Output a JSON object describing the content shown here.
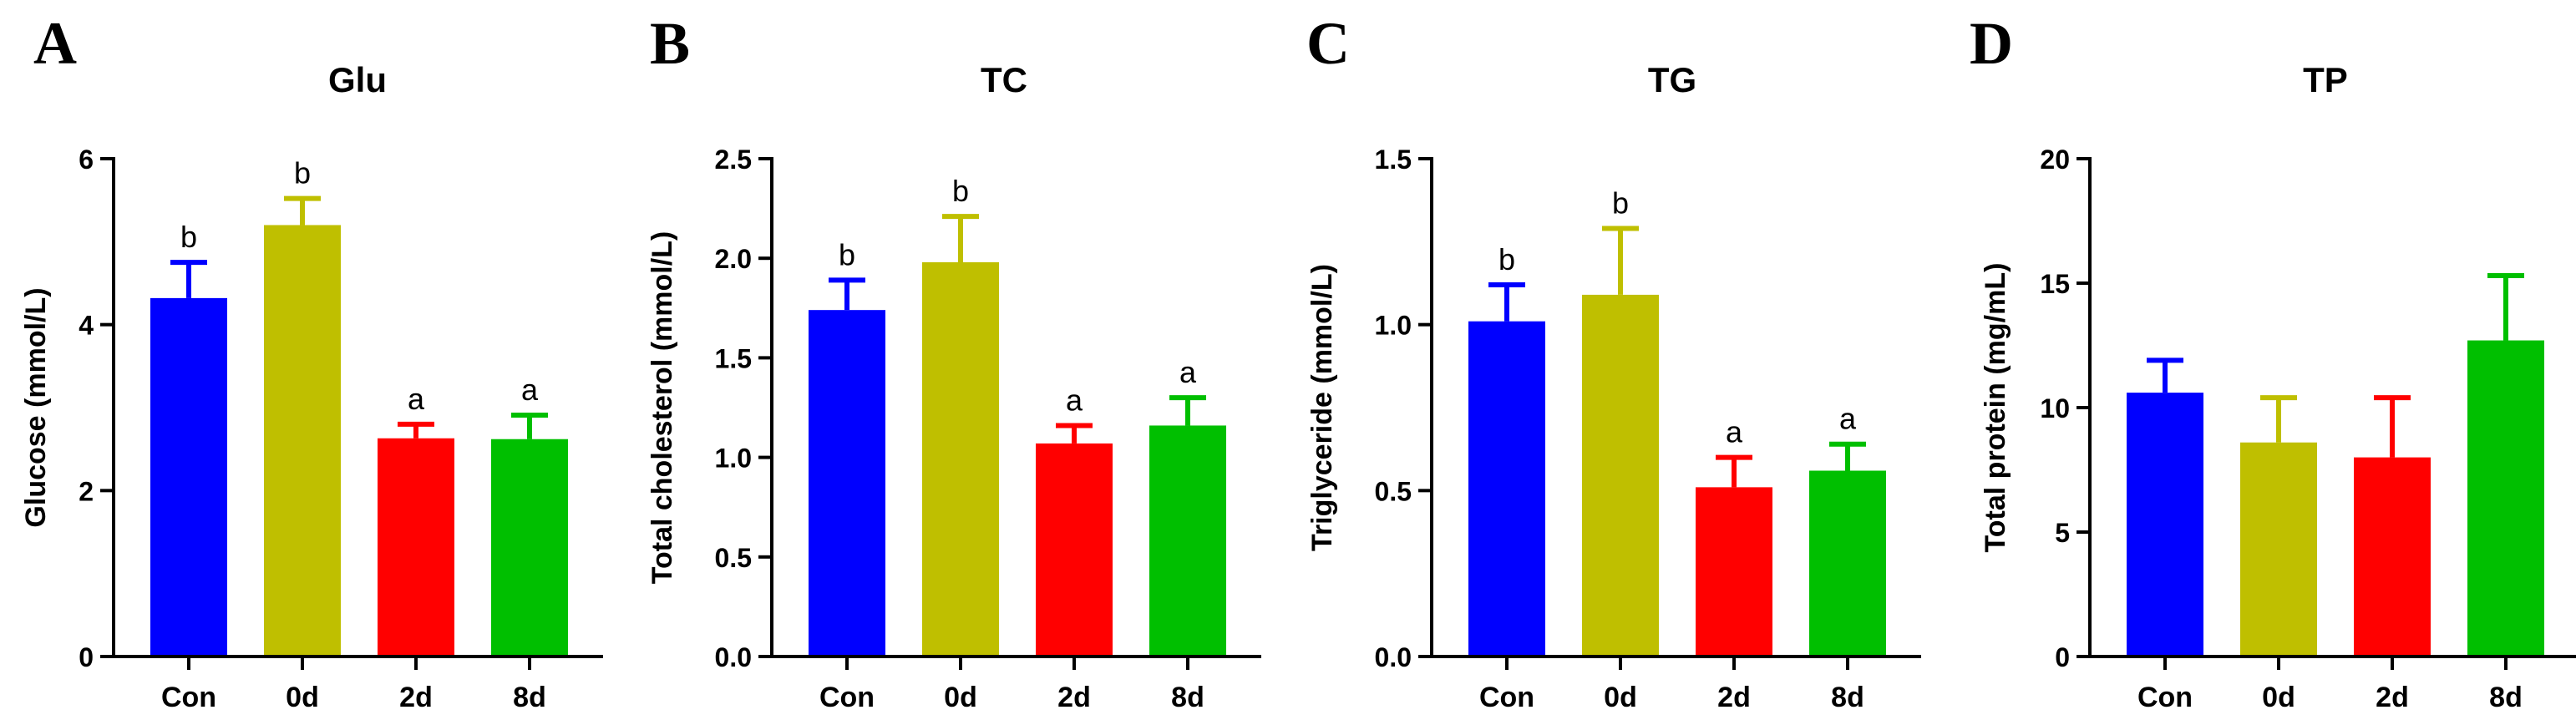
{
  "chart_data": [
    {
      "type": "bar",
      "panel": "A",
      "title": "Glu",
      "ylabel": "Glucose (mmol/L)",
      "xlabel": "",
      "ylim": [
        0,
        6
      ],
      "yticks": [
        "0",
        "2",
        "4",
        "6"
      ],
      "categories": [
        "Con",
        "0d",
        "2d",
        "8d"
      ],
      "values": [
        4.32,
        5.2,
        2.63,
        2.62
      ],
      "errors": [
        0.43,
        0.32,
        0.17,
        0.29
      ],
      "letters": [
        "b",
        "b",
        "a",
        "a"
      ],
      "colors": [
        "#0000ff",
        "#bfbf00",
        "#ff0000",
        "#00bf00"
      ]
    },
    {
      "type": "bar",
      "panel": "B",
      "title": "TC",
      "ylabel": "Total cholesterol (mmol/L)",
      "xlabel": "",
      "ylim": [
        0,
        2.5
      ],
      "yticks": [
        "0.0",
        "0.5",
        "1.0",
        "1.5",
        "2.0",
        "2.5"
      ],
      "categories": [
        "Con",
        "0d",
        "2d",
        "8d"
      ],
      "values": [
        1.74,
        1.98,
        1.07,
        1.16
      ],
      "errors": [
        0.15,
        0.23,
        0.09,
        0.14
      ],
      "letters": [
        "b",
        "b",
        "a",
        "a"
      ],
      "colors": [
        "#0000ff",
        "#bfbf00",
        "#ff0000",
        "#00bf00"
      ]
    },
    {
      "type": "bar",
      "panel": "C",
      "title": "TG",
      "ylabel": "Triglyceride (mmol/L)",
      "xlabel": "",
      "ylim": [
        0,
        1.5
      ],
      "yticks": [
        "0.0",
        "0.5",
        "1.0",
        "1.5"
      ],
      "categories": [
        "Con",
        "0d",
        "2d",
        "8d"
      ],
      "values": [
        1.01,
        1.09,
        0.51,
        0.56
      ],
      "errors": [
        0.11,
        0.2,
        0.09,
        0.08
      ],
      "letters": [
        "b",
        "b",
        "a",
        "a"
      ],
      "colors": [
        "#0000ff",
        "#bfbf00",
        "#ff0000",
        "#00bf00"
      ]
    },
    {
      "type": "bar",
      "panel": "D",
      "title": "TP",
      "ylabel": "Total protein (mg/mL)",
      "xlabel": "",
      "ylim": [
        0,
        20
      ],
      "yticks": [
        "0",
        "5",
        "10",
        "15",
        "20"
      ],
      "categories": [
        "Con",
        "0d",
        "2d",
        "8d"
      ],
      "values": [
        10.6,
        8.6,
        8.0,
        12.7
      ],
      "errors": [
        1.3,
        1.8,
        2.4,
        2.6
      ],
      "letters": [
        "",
        "",
        "",
        ""
      ],
      "colors": [
        "#0000ff",
        "#bfbf00",
        "#ff0000",
        "#00bf00"
      ]
    }
  ]
}
